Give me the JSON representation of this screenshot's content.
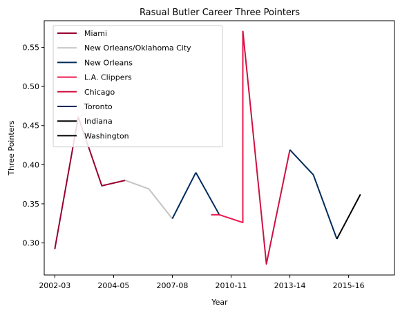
{
  "chart_data": {
    "type": "line",
    "title": "Rasual Butler Career Three Pointers",
    "xlabel": "Year",
    "ylabel": "Three Pointers",
    "xlim": [
      -0.45,
      14.45
    ],
    "ylim": [
      0.259,
      0.584
    ],
    "x_ticks": [
      {
        "pos": 0,
        "label": "2002-03"
      },
      {
        "pos": 2.5,
        "label": "2004-05"
      },
      {
        "pos": 5,
        "label": "2007-08"
      },
      {
        "pos": 7.5,
        "label": "2010-11"
      },
      {
        "pos": 10,
        "label": "2013-14"
      },
      {
        "pos": 12.5,
        "label": "2015-16"
      }
    ],
    "y_ticks": [
      {
        "value": 0.3,
        "label": "0.30"
      },
      {
        "value": 0.35,
        "label": "0.35"
      },
      {
        "value": 0.4,
        "label": "0.40"
      },
      {
        "value": 0.45,
        "label": "0.45"
      },
      {
        "value": 0.5,
        "label": "0.50"
      },
      {
        "value": 0.55,
        "label": "0.55"
      }
    ],
    "grid": false,
    "legend_position": "top-left",
    "series": [
      {
        "name": "Miami",
        "color": "#98002E",
        "x": [
          0,
          1,
          2,
          3
        ],
        "y": [
          0.292,
          0.461,
          0.373,
          0.38
        ]
      },
      {
        "name": "New Orleans/Oklahoma City",
        "color": "#C4C4C4",
        "x": [
          3,
          4,
          5
        ],
        "y": [
          0.38,
          0.369,
          0.331
        ]
      },
      {
        "name": "New Orleans",
        "color": "#002B5C",
        "x": [
          5,
          6
        ],
        "y": [
          0.331,
          0.39
        ]
      },
      {
        "name": "L.A. Clippers",
        "color": "#ED174C",
        "x": [
          7,
          8,
          8
        ],
        "y": [
          0.336,
          0.326,
          0.571
        ]
      },
      {
        "name": "Chicago",
        "color": "#CE1141",
        "x": [
          8,
          9,
          10
        ],
        "y": [
          0.571,
          0.273,
          0.419
        ]
      },
      {
        "name": "Toronto",
        "color": "#002B5C",
        "x": [
          10,
          11,
          12
        ],
        "y": [
          0.419,
          0.387,
          0.305
        ]
      },
      {
        "name": "Indiana",
        "color": "#000000",
        "x": [],
        "y": []
      },
      {
        "name": "Washington",
        "color": "#000000",
        "x": [
          12,
          13
        ],
        "y": [
          0.305,
          0.362
        ]
      }
    ],
    "connectors": [
      {
        "color": "#002B5C",
        "x": [
          6,
          7
        ],
        "y": [
          0.39,
          0.336
        ]
      },
      {
        "color": "#ED174C",
        "x": [
          6.65,
          7
        ],
        "y": [
          0.336,
          0.336
        ]
      }
    ]
  }
}
